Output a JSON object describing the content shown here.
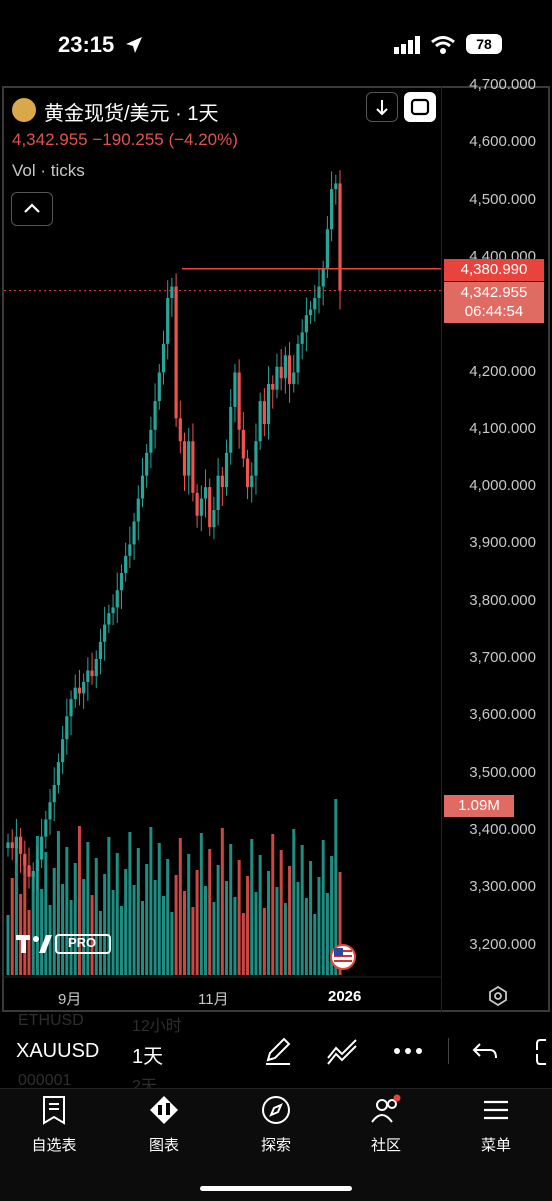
{
  "status_bar": {
    "time": "23:15",
    "battery": "78",
    "icons": [
      "location-arrow-icon",
      "signal-icon",
      "wifi-icon",
      "battery-icon"
    ]
  },
  "chart": {
    "symbol_title": "黄金现货/美元 · 1天",
    "quote": "4,342.955 −190.255 (−4.20%)",
    "volume_indicator": "Vol · ticks",
    "price_axis": [
      "4,700.000",
      "4,600.000",
      "4,500.000",
      "4,400.000",
      "4,300.000",
      "4,200.000",
      "4,100.000",
      "4,000.000",
      "3,900.000",
      "3,800.000",
      "3,700.000",
      "3,600.000",
      "3,500.000",
      "3,400.000",
      "3,300.000",
      "3,200.000"
    ],
    "high_line_price": "4,380.990",
    "last_price": "4,342.955",
    "countdown": "06:44:54",
    "volume_tag": "1.09M",
    "time_axis": [
      "9月",
      "11月",
      "2026"
    ],
    "logo_text": "PRO",
    "colors": {
      "up": "#26a69a",
      "down": "#ef5350",
      "tag_red": "#e8443d",
      "background": "#000000"
    }
  },
  "chart_data": {
    "type": "candlestick",
    "title": "黄金现货/美元 · 1天",
    "ylabel": "",
    "xlabel": "",
    "ylim": [
      3150,
      4700
    ],
    "x_ticks": [
      "9月",
      "11月",
      "2026"
    ],
    "approximate_closes": [
      3380,
      3370,
      3390,
      3360,
      3340,
      3320,
      3330,
      3350,
      3390,
      3420,
      3450,
      3480,
      3520,
      3560,
      3600,
      3630,
      3650,
      3640,
      3660,
      3680,
      3670,
      3700,
      3730,
      3760,
      3780,
      3790,
      3820,
      3850,
      3880,
      3900,
      3940,
      3980,
      4020,
      4060,
      4100,
      4150,
      4200,
      4250,
      4330,
      4350,
      4120,
      4080,
      4020,
      4080,
      3990,
      3950,
      3980,
      4000,
      3930,
      3960,
      4020,
      4000,
      4060,
      4140,
      4200,
      4100,
      4050,
      4000,
      4020,
      4080,
      4150,
      4110,
      4180,
      4170,
      4210,
      4190,
      4230,
      4180,
      4200,
      4250,
      4270,
      4300,
      4310,
      4330,
      4350,
      4380,
      4450,
      4520,
      4530,
      4342.955
    ],
    "high_line": 4380.99,
    "last_price": 4342.955,
    "volume_last": "1.09M"
  },
  "toolbar": {
    "symbol": "XAUUSD",
    "interval": "1天",
    "ghost_top_symbol": "ETHUSD",
    "ghost_top_interval": "12小时",
    "ghost_bottom_symbol": "000001",
    "ghost_bottom_interval": "2天",
    "tools": [
      "draw-pen-icon",
      "indicators-icon",
      "more-icon",
      "undo-icon",
      "layout-icon"
    ]
  },
  "tabs": [
    {
      "label": "自选表",
      "icon": "watchlist-icon"
    },
    {
      "label": "图表",
      "icon": "chart-icon"
    },
    {
      "label": "探索",
      "icon": "compass-icon"
    },
    {
      "label": "社区",
      "icon": "community-icon"
    },
    {
      "label": "菜单",
      "icon": "menu-icon"
    }
  ]
}
